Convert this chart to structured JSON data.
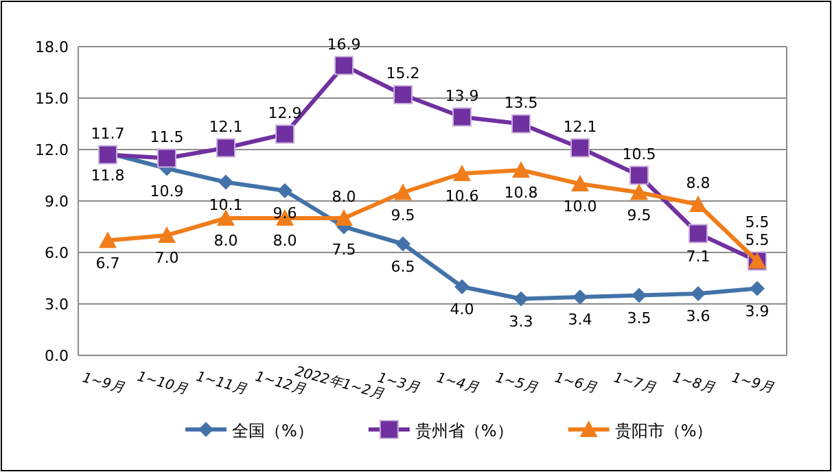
{
  "chart_data": {
    "type": "line",
    "categories": [
      "1~9月",
      "1~10月",
      "1~11月",
      "1~12月",
      "2022年1~2月",
      "1~3月",
      "1~4月",
      "1~5月",
      "1~6月",
      "1~7月",
      "1~8月",
      "1~9月"
    ],
    "series": [
      {
        "name": "全国（%）",
        "color": "#4372a8",
        "marker": "diamond",
        "values": [
          11.8,
          10.9,
          10.1,
          9.6,
          7.5,
          6.5,
          4.0,
          3.3,
          3.4,
          3.5,
          3.6,
          3.9
        ],
        "value_labels": [
          "11.8",
          "10.9",
          "10.1",
          "9.6",
          "7.5",
          "6.5",
          "4.0",
          "3.3",
          "3.4",
          "3.5",
          "3.6",
          "3.9"
        ]
      },
      {
        "name": "贵州省（%）",
        "color": "#7030a0",
        "marker": "square",
        "values": [
          11.7,
          11.5,
          12.1,
          12.9,
          16.9,
          15.2,
          13.9,
          13.5,
          12.1,
          10.5,
          7.1,
          5.5
        ],
        "value_labels": [
          "11.7",
          "11.5",
          "12.1",
          "12.9",
          "16.9",
          "15.2",
          "13.9",
          "13.5",
          "12.1",
          "10.5",
          "7.1",
          "5.5"
        ]
      },
      {
        "name": "贵阳市（%）",
        "color": "#f07d1a",
        "marker": "triangle",
        "values": [
          6.7,
          7.0,
          8.0,
          8.0,
          8.0,
          9.5,
          10.6,
          10.8,
          10.0,
          9.5,
          8.8,
          5.5
        ],
        "value_labels": [
          "6.7",
          "7.0",
          "8.0",
          "8.0",
          "8.0",
          "9.5",
          "10.6",
          "10.8",
          "10.0",
          "9.5",
          "8.8",
          "5.5"
        ]
      }
    ],
    "ylim": [
      0,
      18
    ],
    "yticks": [
      {
        "value": 0,
        "label": "0.0"
      },
      {
        "value": 3,
        "label": "3.0"
      },
      {
        "value": 6,
        "label": "6.0"
      },
      {
        "value": 9,
        "label": "9.0"
      },
      {
        "value": 12,
        "label": "12.0"
      },
      {
        "value": 15,
        "label": "15.0"
      },
      {
        "value": 18,
        "label": "18.0"
      }
    ],
    "grid": "y",
    "legend": "bottom",
    "line_style": "solid"
  }
}
